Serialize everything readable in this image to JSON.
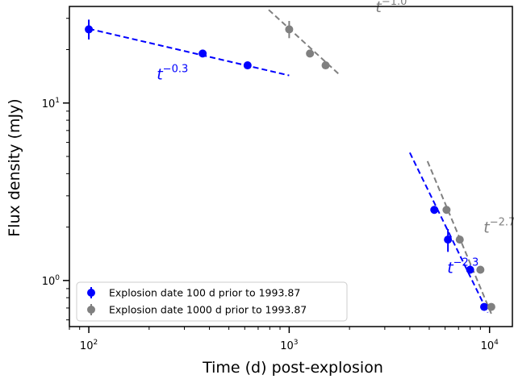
{
  "chart_data": {
    "type": "scatter",
    "title": "",
    "xlabel": "Time (d) post-explosion",
    "ylabel": "Flux density (mJy)",
    "xscale": "log",
    "yscale": "log",
    "xlim": [
      80,
      13000
    ],
    "ylim": [
      0.55,
      35
    ],
    "x_ticks": [
      {
        "value": 100,
        "base": "10",
        "exp": "2"
      },
      {
        "value": 1000,
        "base": "10",
        "exp": "3"
      },
      {
        "value": 10000,
        "base": "10",
        "exp": "4"
      }
    ],
    "y_ticks": [
      {
        "value": 1,
        "base": "10",
        "exp": "0"
      },
      {
        "value": 10,
        "base": "10",
        "exp": "1"
      }
    ],
    "grid": false,
    "legend_position": "lower-left",
    "series": [
      {
        "name": "Explosion date 100 d prior to 1993.87",
        "color": "#0000ff",
        "points": [
          {
            "x": 100,
            "y": 26,
            "ylo": 22.8,
            "yhi": 29.5
          },
          {
            "x": 370,
            "y": 19
          },
          {
            "x": 620,
            "y": 16.3
          },
          {
            "x": 5300,
            "y": 2.5
          },
          {
            "x": 6200,
            "y": 1.7,
            "ylo": 1.45,
            "yhi": 1.95
          },
          {
            "x": 8000,
            "y": 1.15
          },
          {
            "x": 9400,
            "y": 0.71
          }
        ],
        "fits": [
          {
            "x": [
              100,
              1000
            ],
            "y": [
              26.2,
              14.3
            ],
            "label_base": "t",
            "label_exp": "−0.3"
          },
          {
            "x": [
              4000,
              9800
            ],
            "y": [
              5.25,
              0.66
            ],
            "label_base": "t",
            "label_exp": "−2.3"
          }
        ]
      },
      {
        "name": "Explosion date 1000 d prior to 1993.87",
        "color": "#808080",
        "points": [
          {
            "x": 1000,
            "y": 26,
            "ylo": 23.2,
            "yhi": 29
          },
          {
            "x": 1270,
            "y": 19
          },
          {
            "x": 1520,
            "y": 16.3
          },
          {
            "x": 6100,
            "y": 2.5
          },
          {
            "x": 7100,
            "y": 1.7
          },
          {
            "x": 9000,
            "y": 1.15
          },
          {
            "x": 10200,
            "y": 0.71
          }
        ],
        "fits": [
          {
            "x": [
              790,
              1800
            ],
            "y": [
              33.5,
              14.3
            ],
            "label_base": "t",
            "label_exp": "−1.0"
          },
          {
            "x": [
              4900,
              10200
            ],
            "y": [
              4.7,
              0.65
            ],
            "label_base": "t",
            "label_exp": "−2.7"
          }
        ]
      }
    ]
  }
}
